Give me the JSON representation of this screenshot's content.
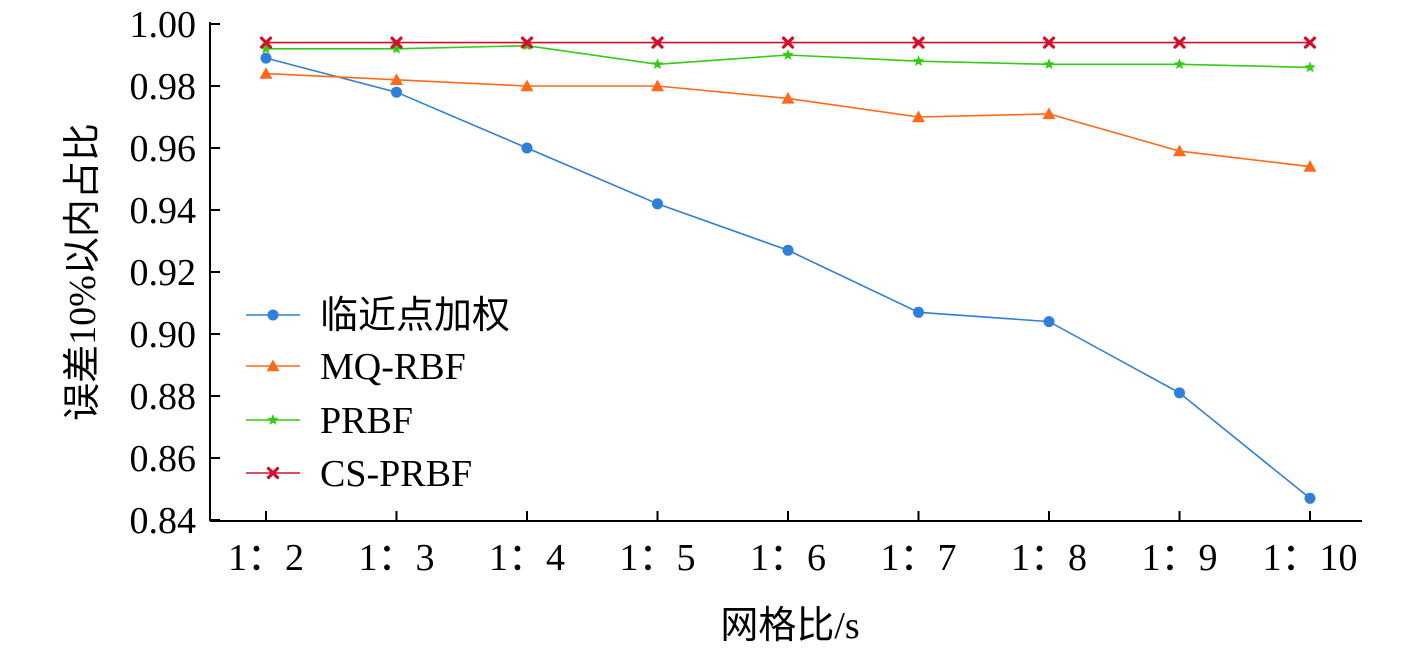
{
  "chart_data": {
    "type": "line",
    "title": "",
    "xlabel": "网格比/s",
    "ylabel": "误差10%以内占比",
    "categories": [
      "1：2",
      "1：3",
      "1：4",
      "1：5",
      "1：6",
      "1：7",
      "1：8",
      "1：9",
      "1：10"
    ],
    "yticks": [
      "0.84",
      "0.86",
      "0.88",
      "0.90",
      "0.92",
      "0.94",
      "0.96",
      "0.98",
      "1.00"
    ],
    "ylim": [
      0.84,
      1.0
    ],
    "grid": false,
    "legend_position": "left-center",
    "series": [
      {
        "name": "临近点加权",
        "marker": "circle",
        "color": "#2f7fd8",
        "values": [
          0.989,
          0.978,
          0.96,
          0.942,
          0.927,
          0.907,
          0.904,
          0.881,
          0.847
        ]
      },
      {
        "name": "MQ-RBF",
        "marker": "triangle",
        "color": "#ff6a1a",
        "values": [
          0.984,
          0.982,
          0.98,
          0.98,
          0.976,
          0.97,
          0.971,
          0.959,
          0.954
        ]
      },
      {
        "name": "PRBF",
        "marker": "star",
        "color": "#33cc11",
        "values": [
          0.992,
          0.992,
          0.993,
          0.987,
          0.99,
          0.988,
          0.987,
          0.987,
          0.986
        ]
      },
      {
        "name": "CS-PRBF",
        "marker": "x",
        "color": "#d0102a",
        "values": [
          0.994,
          0.994,
          0.994,
          0.994,
          0.994,
          0.994,
          0.994,
          0.994,
          0.994
        ]
      }
    ]
  }
}
